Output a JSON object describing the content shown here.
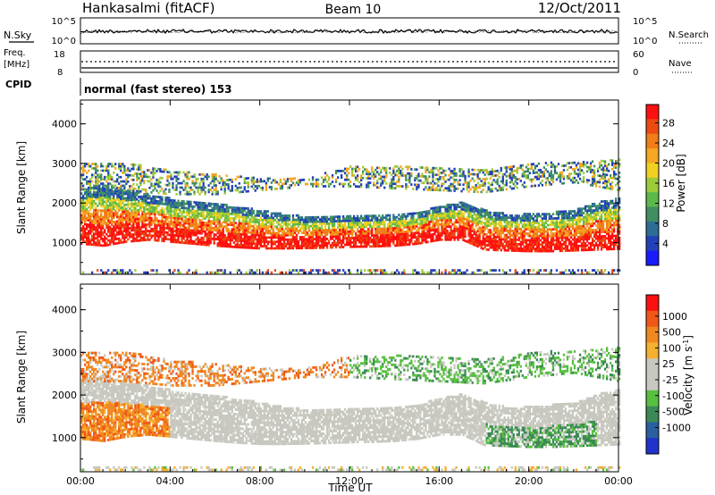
{
  "header": {
    "station": "Hankasalmi (fitACF)",
    "beam": "Beam 10",
    "date": "12/Oct/2011"
  },
  "nsky_panel": {
    "left_label": "N.Sky",
    "left_ticks": [
      "10^5",
      "10^0"
    ],
    "right_ticks": [
      "10^5",
      "10^0"
    ],
    "right_label": "N.Search"
  },
  "freq_panel": {
    "left_label_1": "Freq.",
    "left_label_2": "[MHz]",
    "left_ticks": [
      "18",
      "8"
    ],
    "right_ticks": [
      "60",
      "0"
    ],
    "right_label": "Nave"
  },
  "cpid": {
    "label": "CPID",
    "value": "normal (fast stereo) 153"
  },
  "chart_data": [
    {
      "type": "heatmap",
      "title": "",
      "xlabel": "Time UT",
      "ylabel": "Slant Range [km]",
      "x_ticks": [
        "00:00",
        "04:00",
        "08:00",
        "12:00",
        "16:00",
        "20:00",
        "00:00"
      ],
      "y_ticks": [
        "1000",
        "2000",
        "3000",
        "4000"
      ],
      "ylim": [
        200,
        4600
      ],
      "colorbar": {
        "label": "Power [dB]",
        "ticks": [
          "4",
          "8",
          "12",
          "16",
          "20",
          "24",
          "28"
        ],
        "colors": [
          "#1a1aff",
          "#2340b8",
          "#2d6e96",
          "#3f8f62",
          "#5db84a",
          "#9ccc3a",
          "#f0d020",
          "#f5a623",
          "#f07d18",
          "#ec4a12",
          "#ff1010"
        ]
      },
      "bands": [
        {
          "name": "main",
          "t": [
            0,
            1,
            2,
            3,
            4,
            5,
            6,
            7,
            8,
            9,
            10,
            11,
            12,
            13,
            14,
            15,
            16,
            17,
            18,
            19,
            20,
            21,
            22,
            23,
            24
          ],
          "lo": [
            950,
            900,
            1000,
            1050,
            1000,
            950,
            900,
            860,
            830,
            830,
            840,
            850,
            870,
            880,
            900,
            950,
            1050,
            1050,
            800,
            780,
            760,
            760,
            780,
            800,
            820
          ],
          "hi": [
            2350,
            2450,
            2300,
            2200,
            2100,
            2000,
            1950,
            1900,
            1800,
            1700,
            1650,
            1650,
            1650,
            1700,
            1700,
            1750,
            1900,
            2000,
            1800,
            1700,
            1700,
            1750,
            1800,
            2000,
            2100
          ]
        },
        {
          "name": "upper",
          "t": [
            0,
            2,
            4,
            6,
            8,
            10,
            12,
            14,
            16,
            18,
            20,
            22,
            24
          ],
          "lo": [
            2300,
            2300,
            2200,
            2200,
            2300,
            2400,
            2400,
            2350,
            2300,
            2250,
            2400,
            2500,
            2300
          ],
          "hi": [
            3000,
            3000,
            2800,
            2700,
            2600,
            2600,
            2900,
            2900,
            2900,
            2800,
            3000,
            3000,
            3100
          ]
        },
        {
          "name": "near",
          "t": [
            0,
            6,
            12,
            18,
            24
          ],
          "lo": [
            220,
            220,
            220,
            220,
            220
          ],
          "hi": [
            320,
            300,
            310,
            300,
            330
          ]
        }
      ]
    },
    {
      "type": "heatmap",
      "title": "",
      "xlabel": "Time UT",
      "ylabel": "Slant Range [km]",
      "x_ticks": [
        "00:00",
        "04:00",
        "08:00",
        "12:00",
        "16:00",
        "20:00",
        "00:00"
      ],
      "y_ticks": [
        "1000",
        "2000",
        "3000",
        "4000"
      ],
      "ylim": [
        200,
        4600
      ],
      "colorbar": {
        "label": "Velocity [m s^-1]",
        "ticks": [
          "1000",
          "500",
          "100",
          "25",
          "-25",
          "-100",
          "-500",
          "-1000"
        ],
        "colors": [
          "#2233cc",
          "#2a5fa0",
          "#3b8a55",
          "#58c040",
          "#c8c8c0",
          "#c8c8c0",
          "#f5b030",
          "#f08820",
          "#f05818",
          "#ff1010"
        ]
      },
      "bands": [
        {
          "name": "main",
          "t": [
            0,
            1,
            2,
            3,
            4,
            5,
            6,
            7,
            8,
            9,
            10,
            11,
            12,
            13,
            14,
            15,
            16,
            17,
            18,
            19,
            20,
            21,
            22,
            23,
            24
          ],
          "lo": [
            950,
            900,
            1000,
            1050,
            1000,
            950,
            900,
            860,
            830,
            830,
            840,
            850,
            870,
            880,
            900,
            950,
            1050,
            1050,
            800,
            780,
            760,
            760,
            780,
            800,
            820
          ],
          "hi": [
            2350,
            2450,
            2300,
            2200,
            2100,
            2000,
            1950,
            1900,
            1800,
            1700,
            1650,
            1650,
            1650,
            1700,
            1700,
            1750,
            1900,
            2000,
            1800,
            1700,
            1700,
            1750,
            1800,
            2000,
            2100
          ]
        },
        {
          "name": "upper",
          "t": [
            0,
            2,
            4,
            6,
            8,
            10,
            12,
            14,
            16,
            18,
            20,
            22,
            24
          ],
          "lo": [
            2300,
            2300,
            2200,
            2200,
            2300,
            2400,
            2400,
            2350,
            2300,
            2250,
            2400,
            2500,
            2300
          ],
          "hi": [
            3000,
            3000,
            2800,
            2700,
            2600,
            2600,
            2900,
            2900,
            2900,
            2800,
            3000,
            3000,
            3100
          ]
        },
        {
          "name": "near",
          "t": [
            0,
            6,
            12,
            18,
            24
          ],
          "lo": [
            220,
            220,
            220,
            220,
            220
          ],
          "hi": [
            320,
            300,
            310,
            300,
            330
          ]
        }
      ]
    }
  ]
}
